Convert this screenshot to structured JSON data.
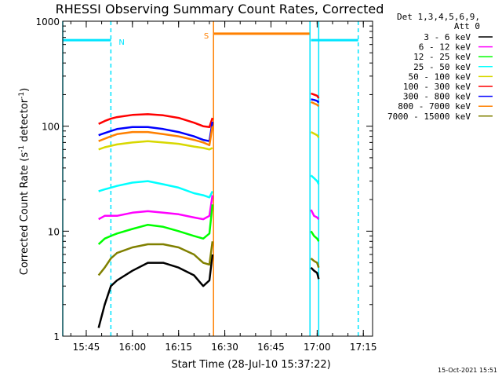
{
  "chart_data": {
    "type": "line",
    "title": "RHESSI Observing Summary Count Rates, Corrected",
    "xlabel": "Start Time (28-Jul-10 15:37:22)",
    "ylabel_main": "Corrected Count Rate (s",
    "ylabel_sup1": "-1",
    "ylabel_mid": " detector",
    "ylabel_sup2": "-1",
    "ylabel_end": ")",
    "yscale": "log",
    "ylim": [
      1,
      1000
    ],
    "xlim": [
      "15:37:22",
      "17:18:00"
    ],
    "x_ticks": [
      "15:45",
      "16:00",
      "16:15",
      "16:30",
      "16:45",
      "17:00",
      "17:15"
    ],
    "y_ticks": [
      "1",
      "10",
      "100",
      "1000"
    ],
    "legend_title": [
      "Det 1,3,4,5,6,9,",
      "Att 0"
    ],
    "legend_position": "right",
    "timestamp": "15-Oct-2021 15:51",
    "flags": [
      {
        "label": "N",
        "color": "#00e5ff",
        "intervals": [
          [
            "15:37:22",
            "15:53:00"
          ],
          [
            "16:58:00",
            "17:13:20"
          ]
        ],
        "level": 660
      },
      {
        "label": "S",
        "color": "#ff8000",
        "intervals": [
          [
            "16:26:30",
            "16:57:30"
          ]
        ],
        "level": 760
      }
    ],
    "vlines": [
      {
        "time": "15:37:22",
        "color": "#00e5ff",
        "style": "solid"
      },
      {
        "time": "15:53:00",
        "color": "#00e5ff",
        "style": "dashed"
      },
      {
        "time": "16:26:20",
        "color": "#ff8000",
        "style": "solid"
      },
      {
        "time": "16:57:40",
        "color": "#00e5ff",
        "style": "solid"
      },
      {
        "time": "17:00:30",
        "color": "#00e5ff",
        "style": "solid"
      },
      {
        "time": "17:13:20",
        "color": "#00e5ff",
        "style": "dashed"
      }
    ],
    "series": [
      {
        "name": "3 - 6 keV",
        "color": "#000000",
        "segments": [
          {
            "x": [
              "15:49:00",
              "15:51:00",
              "15:53:00",
              "15:55:00",
              "16:00:00",
              "16:05:00",
              "16:10:00",
              "16:15:00",
              "16:20:00",
              "16:23:00",
              "16:25:00",
              "16:26:00"
            ],
            "y": [
              1.2,
              2.0,
              3.0,
              3.4,
              4.2,
              5.0,
              5.0,
              4.5,
              3.8,
              3.0,
              3.4,
              6.0
            ]
          },
          {
            "x": [
              "16:58:00",
              "16:59:00",
              "17:00:00",
              "17:00:30"
            ],
            "y": [
              4.5,
              4.2,
              4.0,
              3.5
            ]
          }
        ]
      },
      {
        "name": "6 - 12 keV",
        "color": "#ff00ff",
        "segments": [
          {
            "x": [
              "15:49:00",
              "15:51:00",
              "15:53:00",
              "15:55:00",
              "16:00:00",
              "16:05:00",
              "16:10:00",
              "16:15:00",
              "16:20:00",
              "16:23:00",
              "16:25:00",
              "16:26:00"
            ],
            "y": [
              13,
              14,
              14,
              14,
              15,
              15.5,
              15,
              14.5,
              13.5,
              13,
              14,
              22
            ]
          },
          {
            "x": [
              "16:58:00",
              "16:59:00",
              "17:00:00",
              "17:00:30"
            ],
            "y": [
              16,
              14,
              13.5,
              13
            ]
          }
        ]
      },
      {
        "name": "12 - 25 keV",
        "color": "#00ff00",
        "segments": [
          {
            "x": [
              "15:49:00",
              "15:51:00",
              "15:53:00",
              "15:55:00",
              "16:00:00",
              "16:05:00",
              "16:10:00",
              "16:15:00",
              "16:20:00",
              "16:23:00",
              "16:25:00",
              "16:26:00"
            ],
            "y": [
              7.5,
              8.5,
              9.0,
              9.5,
              10.5,
              11.5,
              11.0,
              10.0,
              9.0,
              8.5,
              9.5,
              18
            ]
          },
          {
            "x": [
              "16:58:00",
              "16:59:00",
              "17:00:00",
              "17:00:30"
            ],
            "y": [
              10,
              9,
              8.5,
              8
            ]
          }
        ]
      },
      {
        "name": "25 - 50 keV",
        "color": "#00ffff",
        "segments": [
          {
            "x": [
              "15:49:00",
              "15:51:00",
              "15:53:00",
              "15:55:00",
              "16:00:00",
              "16:05:00",
              "16:10:00",
              "16:15:00",
              "16:20:00",
              "16:23:00",
              "16:25:00",
              "16:26:00"
            ],
            "y": [
              24,
              25,
              26,
              27,
              29,
              30,
              28,
              26,
              23,
              22,
              21,
              24
            ]
          },
          {
            "x": [
              "16:58:00",
              "16:59:00",
              "17:00:00",
              "17:00:30"
            ],
            "y": [
              34,
              32,
              30,
              28
            ]
          }
        ]
      },
      {
        "name": "50 - 100 keV",
        "color": "#d8d800",
        "segments": [
          {
            "x": [
              "15:49:00",
              "15:51:00",
              "15:53:00",
              "15:55:00",
              "16:00:00",
              "16:05:00",
              "16:10:00",
              "16:15:00",
              "16:20:00",
              "16:23:00",
              "16:25:00",
              "16:26:00"
            ],
            "y": [
              60,
              63,
              65,
              67,
              70,
              72,
              70,
              68,
              64,
              62,
              60,
              62
            ]
          },
          {
            "x": [
              "16:58:00",
              "16:59:00",
              "17:00:00",
              "17:00:30"
            ],
            "y": [
              88,
              85,
              82,
              78
            ]
          }
        ]
      },
      {
        "name": "100 - 300 keV",
        "color": "#ff0000",
        "segments": [
          {
            "x": [
              "15:49:00",
              "15:51:00",
              "15:53:00",
              "15:55:00",
              "16:00:00",
              "16:05:00",
              "16:10:00",
              "16:15:00",
              "16:20:00",
              "16:23:00",
              "16:25:00",
              "16:26:00"
            ],
            "y": [
              105,
              112,
              118,
              122,
              128,
              130,
              127,
              120,
              108,
              100,
              98,
              120
            ]
          },
          {
            "x": [
              "16:58:00",
              "16:59:00",
              "17:00:00",
              "17:00:30"
            ],
            "y": [
              205,
              200,
              195,
              185
            ]
          }
        ]
      },
      {
        "name": "300 - 800 keV",
        "color": "#0000ff",
        "segments": [
          {
            "x": [
              "15:49:00",
              "15:51:00",
              "15:53:00",
              "15:55:00",
              "16:00:00",
              "16:05:00",
              "16:10:00",
              "16:15:00",
              "16:20:00",
              "16:23:00",
              "16:25:00",
              "16:26:00"
            ],
            "y": [
              82,
              86,
              90,
              94,
              98,
              98,
              94,
              88,
              80,
              74,
              72,
              110
            ]
          },
          {
            "x": [
              "16:58:00",
              "16:59:00",
              "17:00:00",
              "17:00:30"
            ],
            "y": [
              180,
              178,
              174,
              168
            ]
          }
        ]
      },
      {
        "name": "800 - 7000 keV",
        "color": "#ff8000",
        "segments": [
          {
            "x": [
              "15:49:00",
              "15:51:00",
              "15:53:00",
              "15:55:00",
              "16:00:00",
              "16:05:00",
              "16:10:00",
              "16:15:00",
              "16:20:00",
              "16:23:00",
              "16:25:00",
              "16:26:00"
            ],
            "y": [
              72,
              76,
              80,
              84,
              88,
              88,
              84,
              80,
              74,
              70,
              66,
              100
            ]
          },
          {
            "x": [
              "16:58:00",
              "16:59:00",
              "17:00:00",
              "17:00:30"
            ],
            "y": [
              170,
              165,
              160,
              155
            ]
          }
        ]
      },
      {
        "name": "7000 - 15000 keV",
        "color": "#808000",
        "segments": [
          {
            "x": [
              "15:49:00",
              "15:51:00",
              "15:53:00",
              "15:55:00",
              "16:00:00",
              "16:05:00",
              "16:10:00",
              "16:15:00",
              "16:20:00",
              "16:23:00",
              "16:25:00",
              "16:26:00"
            ],
            "y": [
              3.8,
              4.5,
              5.5,
              6.2,
              7.0,
              7.5,
              7.5,
              7.0,
              6.0,
              5.0,
              4.8,
              8.0
            ]
          },
          {
            "x": [
              "16:58:00",
              "16:59:00",
              "17:00:00",
              "17:00:30"
            ],
            "y": [
              5.5,
              5.2,
              5.0,
              4.5
            ]
          }
        ]
      }
    ]
  }
}
